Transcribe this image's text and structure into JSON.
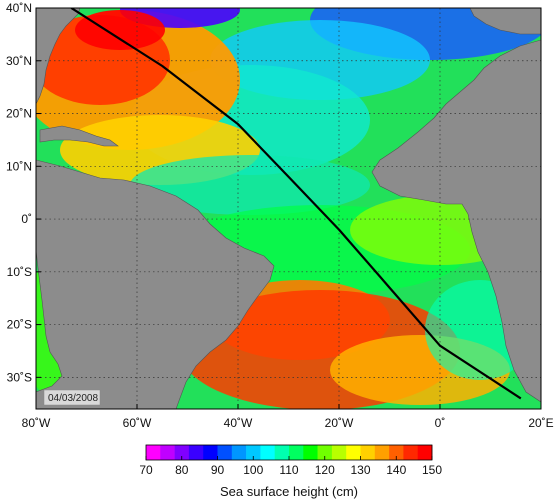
{
  "map": {
    "type": "ocean-field-map",
    "variable_label": "Sea surface height (cm)",
    "date_stamp": "04/03/2008",
    "lon_range": [
      -80,
      20
    ],
    "lat_range": [
      -36,
      40
    ],
    "lon_ticks": [
      {
        "value": -80,
        "label": "80˚W"
      },
      {
        "value": -60,
        "label": "60˚W"
      },
      {
        "value": -40,
        "label": "40˚W"
      },
      {
        "value": -20,
        "label": "20˚W"
      },
      {
        "value": 0,
        "label": "0˚"
      },
      {
        "value": 20,
        "label": "20˚E"
      }
    ],
    "lat_ticks": [
      {
        "value": 40,
        "label": "40˚N"
      },
      {
        "value": 30,
        "label": "30˚N"
      },
      {
        "value": 20,
        "label": "20˚N"
      },
      {
        "value": 10,
        "label": "10˚N"
      },
      {
        "value": 0,
        "label": "0˚"
      },
      {
        "value": -10,
        "label": "10˚S"
      },
      {
        "value": -20,
        "label": "20˚S"
      },
      {
        "value": -30,
        "label": "30˚S"
      }
    ],
    "land_color": "#8c8c8c",
    "grid": "dotted",
    "transect_color": "#000000",
    "transect_points": [
      {
        "lon": -73,
        "lat": 40
      },
      {
        "lon": -55,
        "lat": 29
      },
      {
        "lon": -40,
        "lat": 18
      },
      {
        "lon": -30,
        "lat": 8
      },
      {
        "lon": -20,
        "lat": -2
      },
      {
        "lon": -10,
        "lat": -13
      },
      {
        "lon": 0,
        "lat": -24
      },
      {
        "lon": 16,
        "lat": -34
      }
    ]
  },
  "colorbar": {
    "min": 70,
    "max": 150,
    "tick_labels": [
      "70",
      "80",
      "90",
      "100",
      "110",
      "120",
      "130",
      "140",
      "150"
    ],
    "colors": [
      "#ff00ff",
      "#c000ff",
      "#8000ff",
      "#3a00ff",
      "#0000ff",
      "#0050ff",
      "#0096ff",
      "#00c8ff",
      "#00ffff",
      "#00ffb0",
      "#00ff60",
      "#00ff00",
      "#70ff00",
      "#b8ff00",
      "#ffff00",
      "#ffd000",
      "#ffa000",
      "#ff6000",
      "#ff2800",
      "#ff0000"
    ]
  }
}
